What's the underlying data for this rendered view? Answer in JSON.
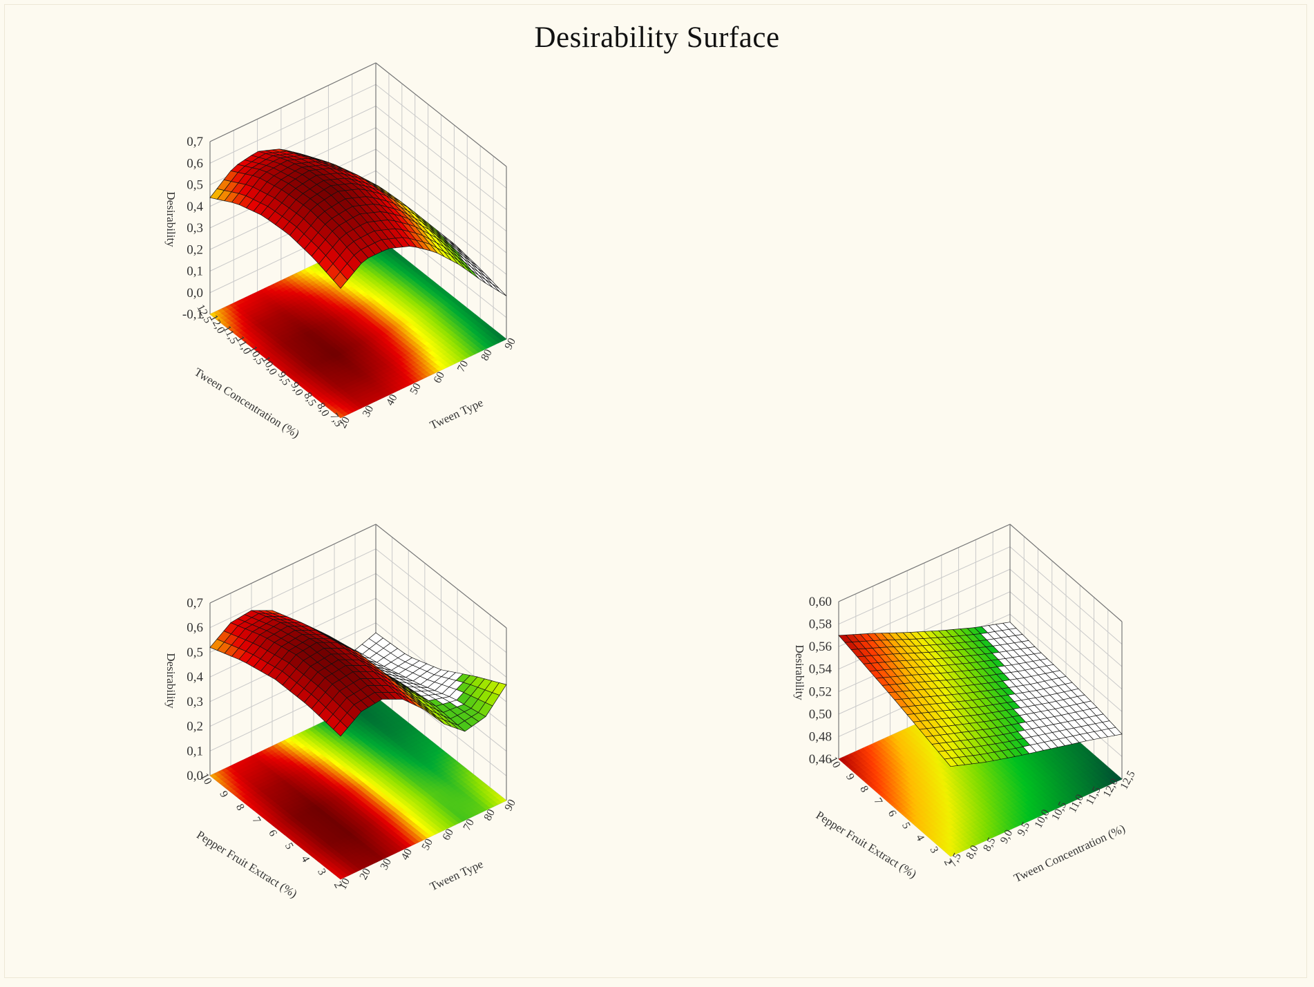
{
  "title": "Desirability Surface",
  "chart_data": [
    {
      "type": "surface3d",
      "xlabel": "Tween Type",
      "ylabel": "Tween Concentration (%)",
      "zlabel": "Desirability",
      "x_ticks": [
        "20",
        "30",
        "40",
        "50",
        "60",
        "70",
        "80",
        "90"
      ],
      "y_ticks": [
        "7,5",
        "8,0",
        "8,5",
        "9,0",
        "9,5",
        "10,0",
        "10,5",
        "11,0",
        "11,5",
        "12,0",
        "12,5"
      ],
      "z_ticks": [
        "-0,1",
        "0,0",
        "0,1",
        "0,2",
        "0,3",
        "0,4",
        "0,5",
        "0,6",
        "0,7"
      ],
      "xlim": [
        20,
        90
      ],
      "ylim": [
        7.5,
        12.5
      ],
      "zlim": [
        -0.1,
        0.7
      ],
      "surface_x": [
        20,
        30,
        40,
        50,
        60,
        70,
        80,
        90
      ],
      "surface_y": [
        7.5,
        8.5,
        9.5,
        10.5,
        11.5,
        12.5
      ],
      "surface_z": [
        [
          0.5,
          0.58,
          0.58,
          0.54,
          0.46,
          0.35,
          0.22,
          0.1
        ],
        [
          0.54,
          0.62,
          0.63,
          0.59,
          0.51,
          0.4,
          0.26,
          0.13
        ],
        [
          0.56,
          0.64,
          0.66,
          0.62,
          0.54,
          0.43,
          0.29,
          0.15
        ],
        [
          0.55,
          0.63,
          0.65,
          0.61,
          0.53,
          0.42,
          0.28,
          0.14
        ],
        [
          0.51,
          0.6,
          0.61,
          0.57,
          0.49,
          0.38,
          0.25,
          0.12
        ],
        [
          0.44,
          0.53,
          0.55,
          0.51,
          0.43,
          0.32,
          0.2,
          0.08
        ]
      ],
      "colormap": [
        "#006633",
        "#00aa33",
        "#8ee000",
        "#ffff00",
        "#e60000",
        "#700000"
      ],
      "grid": true
    },
    {
      "type": "surface3d",
      "xlabel": "Tween Type",
      "ylabel": "Pepper Fruit Extract (%)",
      "zlabel": "Desirability",
      "x_ticks": [
        "10",
        "20",
        "30",
        "40",
        "50",
        "60",
        "70",
        "80",
        "90"
      ],
      "y_ticks": [
        "2",
        "3",
        "4",
        "5",
        "6",
        "7",
        "8",
        "9",
        "10"
      ],
      "z_ticks": [
        "0,0",
        "0,1",
        "0,2",
        "0,3",
        "0,4",
        "0,5",
        "0,6",
        "0,7"
      ],
      "xlim": [
        10,
        90
      ],
      "ylim": [
        2,
        10
      ],
      "zlim": [
        0.0,
        0.7
      ],
      "surface_x": [
        10,
        20,
        30,
        40,
        50,
        60,
        70,
        80,
        90
      ],
      "surface_y": [
        2,
        4,
        6,
        8,
        10
      ],
      "surface_z": [
        [
          0.58,
          0.64,
          0.65,
          0.61,
          0.53,
          0.43,
          0.36,
          0.38,
          0.47
        ],
        [
          0.6,
          0.66,
          0.67,
          0.63,
          0.55,
          0.45,
          0.37,
          0.35,
          0.4
        ],
        [
          0.6,
          0.66,
          0.67,
          0.63,
          0.55,
          0.44,
          0.35,
          0.3,
          0.32
        ],
        [
          0.57,
          0.63,
          0.64,
          0.6,
          0.52,
          0.41,
          0.32,
          0.26,
          0.27
        ],
        [
          0.52,
          0.58,
          0.59,
          0.55,
          0.47,
          0.37,
          0.28,
          0.23,
          0.26
        ]
      ],
      "colormap": [
        "#006633",
        "#00aa33",
        "#8ee000",
        "#ffff00",
        "#e60000",
        "#700000"
      ],
      "grid": true
    },
    {
      "type": "surface3d",
      "xlabel": "Tween Concentration (%)",
      "ylabel": "Pepper Fruit Extract (%)",
      "zlabel": "Desirability",
      "x_ticks": [
        "7,5",
        "8,0",
        "8,5",
        "9,0",
        "9,5",
        "10,0",
        "10,5",
        "11,0",
        "11,5",
        "12,0",
        "12,5"
      ],
      "y_ticks": [
        "2",
        "3",
        "4",
        "5",
        "6",
        "7",
        "8",
        "9",
        "10"
      ],
      "z_ticks": [
        "0,46",
        "0,48",
        "0,50",
        "0,52",
        "0,54",
        "0,56",
        "0,58",
        "0,60"
      ],
      "xlim": [
        7.5,
        12.5
      ],
      "ylim": [
        2,
        10
      ],
      "zlim": [
        0.46,
        0.6
      ],
      "surface_x": [
        7.5,
        8.5,
        9.5,
        10.5,
        11.5,
        12.5
      ],
      "surface_y": [
        2,
        4,
        6,
        8,
        10
      ],
      "surface_z": [
        [
          0.54,
          0.53,
          0.522,
          0.515,
          0.508,
          0.5
        ],
        [
          0.548,
          0.538,
          0.528,
          0.52,
          0.512,
          0.505
        ],
        [
          0.556,
          0.545,
          0.534,
          0.524,
          0.515,
          0.508
        ],
        [
          0.563,
          0.552,
          0.54,
          0.529,
          0.519,
          0.51
        ],
        [
          0.57,
          0.558,
          0.545,
          0.533,
          0.522,
          0.513
        ]
      ],
      "colormap": [
        "#004d33",
        "#00852b",
        "#00c020",
        "#7ddc00",
        "#f0f000",
        "#ffbb00",
        "#ff3c00",
        "#b00000"
      ],
      "grid": true
    }
  ]
}
